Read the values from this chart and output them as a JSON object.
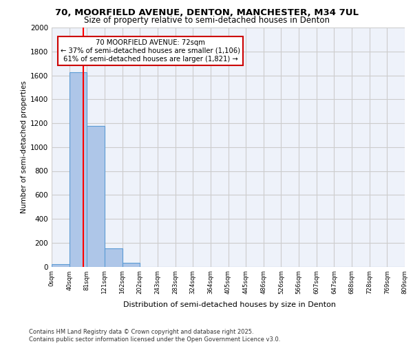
{
  "title_line1": "70, MOORFIELD AVENUE, DENTON, MANCHESTER, M34 7UL",
  "title_line2": "Size of property relative to semi-detached houses in Denton",
  "xlabel": "Distribution of semi-detached houses by size in Denton",
  "ylabel": "Number of semi-detached properties",
  "footer_line1": "Contains HM Land Registry data © Crown copyright and database right 2025.",
  "footer_line2": "Contains public sector information licensed under the Open Government Licence v3.0.",
  "bin_labels": [
    "0sqm",
    "40sqm",
    "81sqm",
    "121sqm",
    "162sqm",
    "202sqm",
    "243sqm",
    "283sqm",
    "324sqm",
    "364sqm",
    "405sqm",
    "445sqm",
    "486sqm",
    "526sqm",
    "566sqm",
    "607sqm",
    "647sqm",
    "688sqm",
    "728sqm",
    "769sqm",
    "809sqm"
  ],
  "bar_values": [
    20,
    1625,
    1175,
    150,
    30,
    0,
    0,
    0,
    0,
    0,
    0,
    0,
    0,
    0,
    0,
    0,
    0,
    0,
    0,
    0
  ],
  "bar_color": "#aec6e8",
  "bar_edge_color": "#5b9bd5",
  "red_line_x": 1.775,
  "property_size": 72,
  "annotation_title": "70 MOORFIELD AVENUE: 72sqm",
  "annotation_line2": "← 37% of semi-detached houses are smaller (1,106)",
  "annotation_line3": "61% of semi-detached houses are larger (1,821) →",
  "annotation_box_color": "#ffffff",
  "annotation_box_edge": "#cc0000",
  "ylim": [
    0,
    2000
  ],
  "yticks": [
    0,
    200,
    400,
    600,
    800,
    1000,
    1200,
    1400,
    1600,
    1800,
    2000
  ],
  "grid_color": "#cccccc",
  "bg_color": "#eef2fa"
}
